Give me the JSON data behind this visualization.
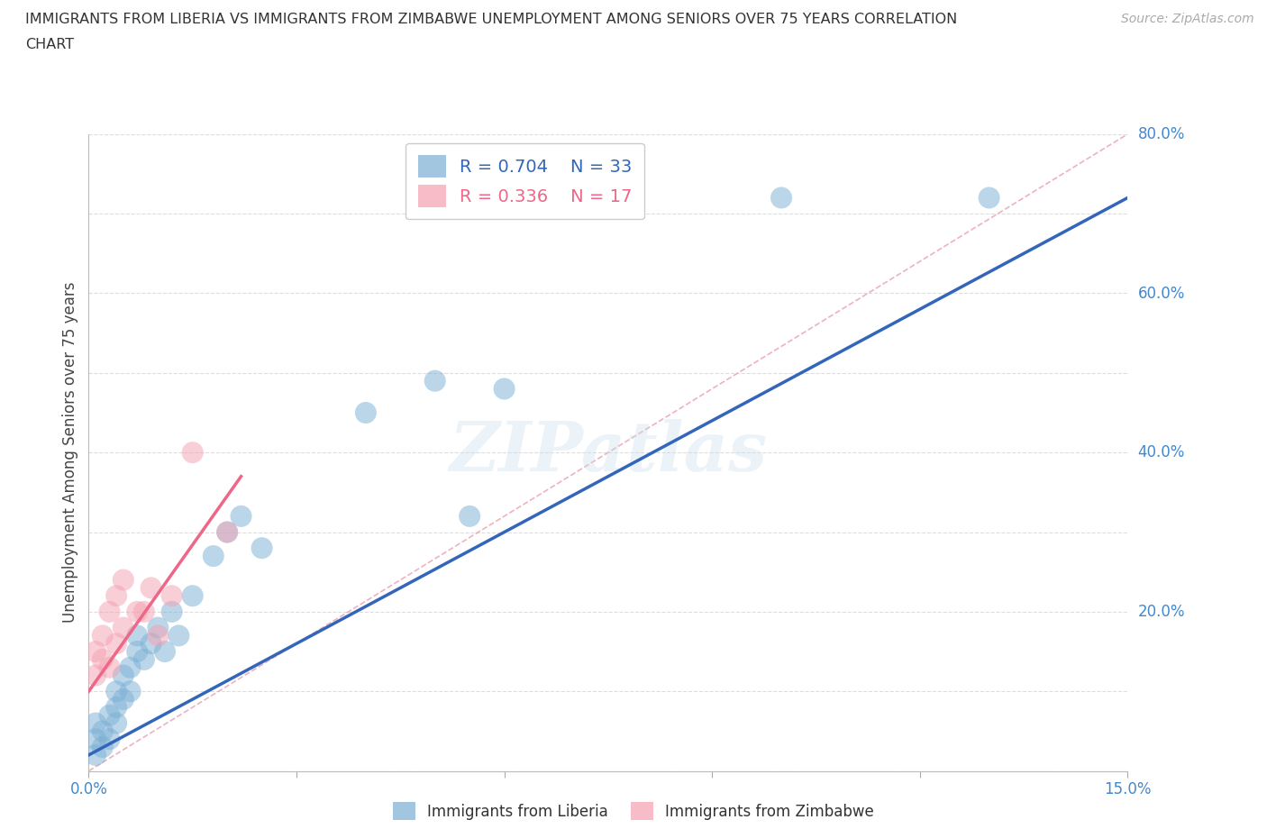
{
  "title_line1": "IMMIGRANTS FROM LIBERIA VS IMMIGRANTS FROM ZIMBABWE UNEMPLOYMENT AMONG SENIORS OVER 75 YEARS CORRELATION",
  "title_line2": "CHART",
  "source": "Source: ZipAtlas.com",
  "ylabel": "Unemployment Among Seniors over 75 years",
  "xlim": [
    0.0,
    0.15
  ],
  "ylim": [
    0.0,
    0.8
  ],
  "xticks": [
    0.0,
    0.03,
    0.06,
    0.09,
    0.12,
    0.15
  ],
  "xticklabels": [
    "0.0%",
    "",
    "",
    "",
    "",
    "15.0%"
  ],
  "yticks": [
    0.0,
    0.2,
    0.4,
    0.6,
    0.8
  ],
  "yticklabels": [
    "",
    "20.0%",
    "40.0%",
    "60.0%",
    "80.0%"
  ],
  "liberia_color": "#7BAFD4",
  "zimbabwe_color": "#F4A0B0",
  "liberia_line_color": "#3366BB",
  "zimbabwe_line_color": "#EE6688",
  "ref_line_color": "#E8A0B0",
  "liberia_R": 0.704,
  "liberia_N": 33,
  "zimbabwe_R": 0.336,
  "zimbabwe_N": 17,
  "watermark": "ZIPatlas",
  "liberia_scatter_x": [
    0.001,
    0.001,
    0.001,
    0.002,
    0.002,
    0.003,
    0.003,
    0.004,
    0.004,
    0.004,
    0.005,
    0.005,
    0.006,
    0.006,
    0.007,
    0.007,
    0.008,
    0.009,
    0.01,
    0.011,
    0.012,
    0.013,
    0.015,
    0.018,
    0.02,
    0.022,
    0.025,
    0.04,
    0.05,
    0.055,
    0.06,
    0.1,
    0.13
  ],
  "liberia_scatter_y": [
    0.02,
    0.04,
    0.06,
    0.03,
    0.05,
    0.04,
    0.07,
    0.06,
    0.08,
    0.1,
    0.09,
    0.12,
    0.1,
    0.13,
    0.15,
    0.17,
    0.14,
    0.16,
    0.18,
    0.15,
    0.2,
    0.17,
    0.22,
    0.27,
    0.3,
    0.32,
    0.28,
    0.45,
    0.49,
    0.32,
    0.48,
    0.72,
    0.72
  ],
  "zimbabwe_scatter_x": [
    0.001,
    0.001,
    0.002,
    0.002,
    0.003,
    0.003,
    0.004,
    0.004,
    0.005,
    0.005,
    0.007,
    0.008,
    0.009,
    0.01,
    0.012,
    0.015,
    0.02
  ],
  "zimbabwe_scatter_y": [
    0.12,
    0.15,
    0.14,
    0.17,
    0.13,
    0.2,
    0.16,
    0.22,
    0.18,
    0.24,
    0.2,
    0.2,
    0.23,
    0.17,
    0.22,
    0.4,
    0.3
  ],
  "liberia_line_x": [
    0.0,
    0.15
  ],
  "liberia_line_y": [
    0.02,
    0.72
  ],
  "zimbabwe_line_x": [
    0.0,
    0.022
  ],
  "zimbabwe_line_y": [
    0.1,
    0.37
  ],
  "ref_line_x": [
    0.0,
    0.15
  ],
  "ref_line_y": [
    0.0,
    0.8
  ],
  "bottom_label_liberia": "Immigrants from Liberia",
  "bottom_label_zimbabwe": "Immigrants from Zimbabwe",
  "tick_color": "#4488CC",
  "grid_color": "#dddddd"
}
